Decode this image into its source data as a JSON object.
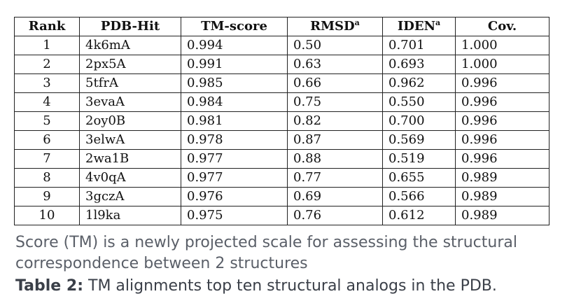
{
  "table": {
    "headers": [
      {
        "text": "Rank",
        "sup": ""
      },
      {
        "text": "PDB-Hit",
        "sup": ""
      },
      {
        "text": "TM-score",
        "sup": ""
      },
      {
        "text": "RMSD",
        "sup": "a"
      },
      {
        "text": "IDEN",
        "sup": "a"
      },
      {
        "text": "Cov.",
        "sup": ""
      }
    ],
    "rows": [
      [
        "1",
        "4k6mA",
        "0.994",
        "0.50",
        "0.701",
        "1.000"
      ],
      [
        "2",
        "2px5A",
        "0.991",
        "0.63",
        "0.693",
        "1.000"
      ],
      [
        "3",
        "5tfrA",
        "0.985",
        "0.66",
        "0.962",
        "0.996"
      ],
      [
        "4",
        "3evaA",
        "0.984",
        "0.75",
        "0.550",
        "0.996"
      ],
      [
        "5",
        "2oy0B",
        "0.981",
        "0.82",
        "0.700",
        "0.996"
      ],
      [
        "6",
        "3elwA",
        "0.978",
        "0.87",
        "0.569",
        "0.996"
      ],
      [
        "7",
        "2wa1B",
        "0.977",
        "0.88",
        "0.519",
        "0.996"
      ],
      [
        "8",
        "4v0qA",
        "0.977",
        "0.77",
        "0.655",
        "0.989"
      ],
      [
        "9",
        "3gczA",
        "0.976",
        "0.69",
        "0.566",
        "0.989"
      ],
      [
        "10",
        "1l9ka",
        "0.975",
        "0.76",
        "0.612",
        "0.989"
      ]
    ]
  },
  "caption": {
    "note": "Score (TM) is a newly projected scale for assessing the structural correspondence between 2 structures",
    "table_label": "Table 2:",
    "table_title": "TM alignments top ten structural analogs in the PDB."
  }
}
